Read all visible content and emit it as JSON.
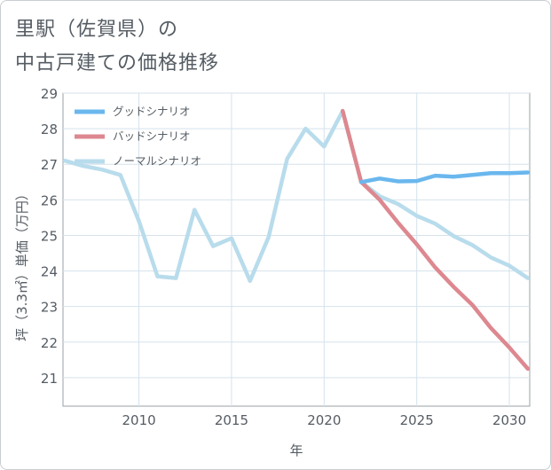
{
  "title_line1": "里駅（佐賀県）の",
  "title_line2": "中古戸建ての価格推移",
  "chart_data": {
    "type": "line",
    "title": "里駅（佐賀県）の中古戸建ての価格推移",
    "xlabel": "年",
    "ylabel": "坪（3.3㎡）単価（万円）",
    "xlim": [
      2005.9,
      2031.1
    ],
    "ylim": [
      20.2,
      29.0
    ],
    "xticks": [
      2010,
      2015,
      2020,
      2025,
      2030
    ],
    "yticks": [
      21,
      22,
      23,
      24,
      25,
      26,
      27,
      28,
      29
    ],
    "grid": true,
    "legend_position": "top-left",
    "series": [
      {
        "name": "グッドシナリオ",
        "color": "#6ab7ee",
        "x": [
          2022,
          2023,
          2024,
          2025,
          2026,
          2027,
          2028,
          2029,
          2030,
          2031
        ],
        "values": [
          26.5,
          26.6,
          26.52,
          26.53,
          26.68,
          26.65,
          26.7,
          26.75,
          26.75,
          26.77
        ]
      },
      {
        "name": "バッドシナリオ",
        "color": "#dd8890",
        "x": [
          2021,
          2022,
          2023,
          2024,
          2025,
          2026,
          2027,
          2028,
          2029,
          2030,
          2031
        ],
        "values": [
          28.5,
          26.5,
          26.0,
          25.35,
          24.75,
          24.1,
          23.55,
          23.05,
          22.4,
          21.85,
          21.25
        ]
      },
      {
        "name": "ノーマルシナリオ",
        "color": "#b8dcec",
        "x": [
          2006,
          2007,
          2008,
          2009,
          2010,
          2011,
          2012,
          2013,
          2014,
          2015,
          2016,
          2017,
          2018,
          2019,
          2020,
          2021,
          2022,
          2023,
          2024,
          2025,
          2026,
          2027,
          2028,
          2029,
          2030,
          2031
        ],
        "values": [
          27.1,
          26.95,
          26.85,
          26.7,
          25.4,
          23.85,
          23.8,
          25.72,
          24.7,
          24.92,
          23.72,
          24.95,
          27.15,
          28.0,
          27.5,
          28.5,
          26.5,
          26.1,
          25.88,
          25.55,
          25.33,
          24.98,
          24.73,
          24.38,
          24.15,
          23.8
        ]
      }
    ]
  }
}
